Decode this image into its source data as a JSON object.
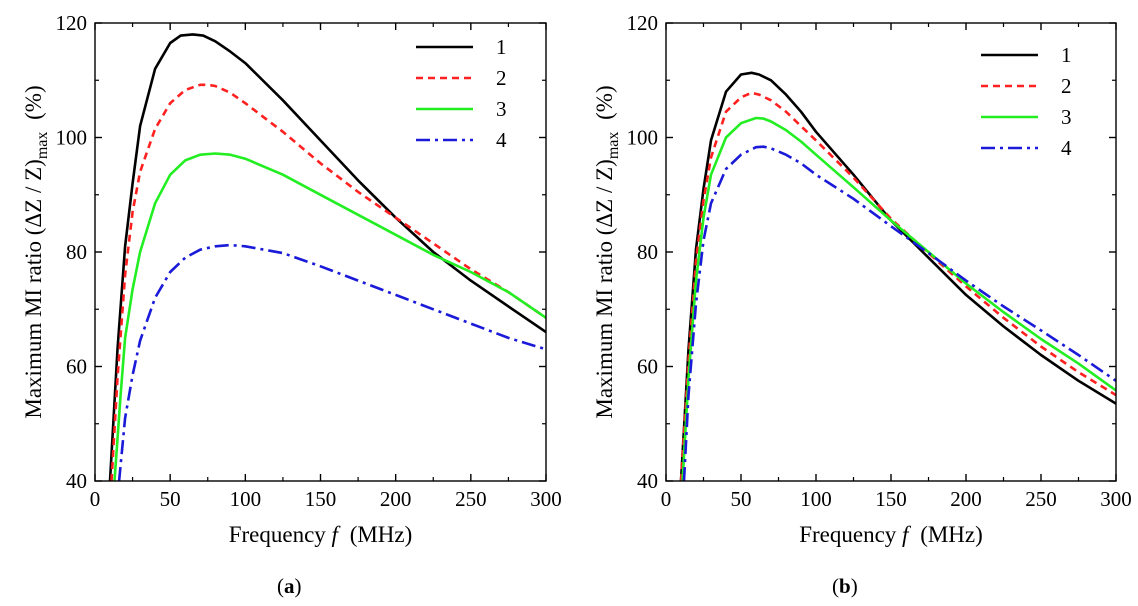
{
  "chart_data": [
    {
      "type": "line",
      "panel_label": "a",
      "xlabel": "Frequency f (MHz)",
      "ylabel": "Maximum MI ratio (ΔZ / Z)max (%)",
      "xlim": [
        0,
        300
      ],
      "ylim": [
        40,
        120
      ],
      "xticks": [
        0,
        50,
        100,
        150,
        200,
        250,
        300
      ],
      "yticks": [
        40,
        60,
        80,
        100,
        120
      ],
      "grid": false,
      "legend_position": "top-right",
      "series": [
        {
          "name": "1",
          "color": "#000000",
          "dash": "solid",
          "x": [
            10,
            15,
            20,
            25,
            30,
            40,
            50,
            57,
            65,
            72,
            80,
            90,
            100,
            125,
            150,
            175,
            200,
            225,
            250,
            275,
            300
          ],
          "y": [
            40,
            63,
            81,
            92,
            102,
            112,
            116.5,
            117.8,
            118,
            117.8,
            116.8,
            115,
            113,
            106.5,
            99.5,
            92.5,
            86,
            80,
            75,
            70.5,
            66
          ]
        },
        {
          "name": "2",
          "color": "#ff2020",
          "dash": "dash",
          "x": [
            11,
            15,
            20,
            25,
            30,
            40,
            50,
            60,
            70,
            75,
            80,
            90,
            100,
            125,
            150,
            175,
            200,
            225,
            250,
            275,
            300
          ],
          "y": [
            40,
            58,
            76,
            87,
            94,
            101.5,
            106,
            108.3,
            109.2,
            109.2,
            109,
            107.8,
            106,
            101,
            95.5,
            90.5,
            86,
            81.5,
            77,
            73,
            68.5
          ]
        },
        {
          "name": "3",
          "color": "#22ee22",
          "dash": "solid",
          "x": [
            13,
            17,
            20,
            25,
            30,
            40,
            50,
            60,
            70,
            80,
            90,
            100,
            125,
            150,
            175,
            200,
            225,
            250,
            275,
            300
          ],
          "y": [
            40,
            55,
            65,
            73.5,
            80,
            88.5,
            93.5,
            96,
            97,
            97.2,
            97,
            96.3,
            93.5,
            90,
            86.5,
            83,
            79.5,
            76.5,
            73,
            68.5
          ]
        },
        {
          "name": "4",
          "color": "#1a1ad8",
          "dash": "dashdot",
          "x": [
            16,
            20,
            25,
            30,
            40,
            50,
            60,
            70,
            80,
            90,
            100,
            125,
            150,
            175,
            200,
            225,
            250,
            275,
            300
          ],
          "y": [
            40,
            51,
            58.5,
            64.5,
            72,
            76.5,
            79,
            80.4,
            81,
            81.2,
            81,
            79.8,
            77.5,
            75,
            72.5,
            70,
            67.5,
            65,
            63
          ]
        }
      ]
    },
    {
      "type": "line",
      "panel_label": "b",
      "xlabel": "Frequency f (MHz)",
      "ylabel": "Maximum MI ratio (ΔZ / Z)max (%)",
      "xlim": [
        0,
        300
      ],
      "ylim": [
        40,
        120
      ],
      "xticks": [
        0,
        50,
        100,
        150,
        200,
        250,
        300
      ],
      "yticks": [
        40,
        60,
        80,
        100,
        120
      ],
      "grid": false,
      "legend_position": "top-right",
      "series": [
        {
          "name": "1",
          "color": "#000000",
          "dash": "solid",
          "x": [
            10,
            15,
            20,
            25,
            30,
            40,
            50,
            57,
            62,
            70,
            80,
            90,
            100,
            125,
            150,
            175,
            200,
            225,
            250,
            275,
            300
          ],
          "y": [
            40,
            63,
            80.5,
            91,
            99.5,
            108,
            111,
            111.3,
            111,
            110,
            107.5,
            104.5,
            101,
            93.5,
            85.5,
            79,
            72.5,
            67,
            62,
            57.5,
            53.5
          ]
        },
        {
          "name": "2",
          "color": "#ff2020",
          "dash": "dash",
          "x": [
            10,
            15,
            20,
            25,
            30,
            40,
            50,
            57,
            62,
            70,
            80,
            90,
            100,
            125,
            150,
            175,
            200,
            225,
            250,
            275,
            300
          ],
          "y": [
            40,
            61,
            78.5,
            89,
            96.5,
            104.5,
            107,
            107.8,
            107.5,
            106.5,
            104.5,
            102,
            99.5,
            93,
            85.8,
            79.8,
            74,
            68.5,
            63.5,
            59,
            55
          ]
        },
        {
          "name": "3",
          "color": "#22ee22",
          "dash": "solid",
          "x": [
            11,
            15,
            20,
            25,
            30,
            40,
            50,
            60,
            65,
            70,
            80,
            90,
            100,
            125,
            150,
            175,
            200,
            225,
            250,
            275,
            300
          ],
          "y": [
            40,
            58,
            75,
            86,
            93.5,
            100,
            102.5,
            103.4,
            103.3,
            102.8,
            101.3,
            99.3,
            97,
            91.3,
            85.5,
            80,
            74.5,
            69.5,
            64.8,
            60.5,
            55.8
          ]
        },
        {
          "name": "4",
          "color": "#1a1ad8",
          "dash": "dashdot",
          "x": [
            12,
            15,
            20,
            25,
            30,
            40,
            50,
            60,
            65,
            70,
            80,
            90,
            100,
            125,
            150,
            175,
            200,
            225,
            250,
            275,
            300
          ],
          "y": [
            40,
            55,
            71,
            82,
            88.5,
            94.5,
            97,
            98.3,
            98.4,
            98.1,
            97,
            95.5,
            93.5,
            89.3,
            84.5,
            79.8,
            75,
            70.5,
            66.3,
            62,
            57.5
          ]
        }
      ]
    }
  ]
}
